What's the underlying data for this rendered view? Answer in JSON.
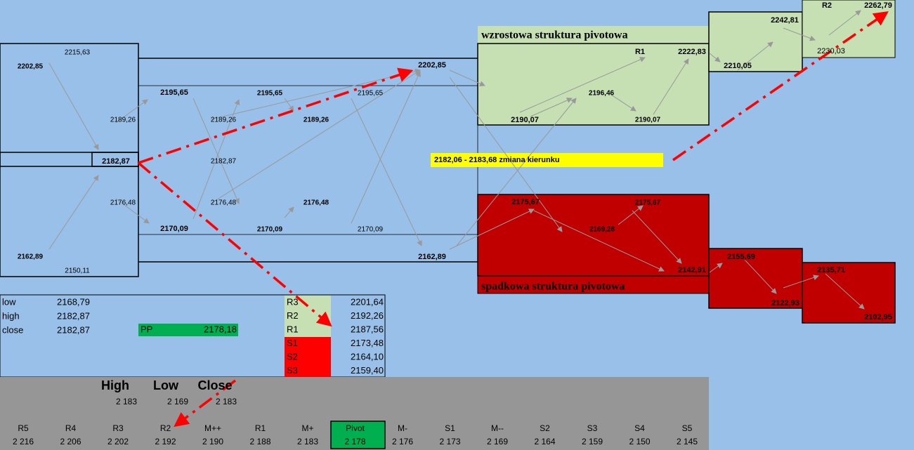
{
  "labels": [
    "2215,63",
    "2202,85",
    "2189,26",
    "2182,87",
    "2176,48",
    "2162,89",
    "2150,11",
    "2195,65",
    "2195,65",
    "2195,65",
    "2189,26",
    "2189,26",
    "2182,87",
    "2176,48",
    "2176,48",
    "2170,09",
    "2170,09",
    "2170,09",
    "2202,85",
    "2162,89",
    "wzrostowa struktura pivotowa",
    "R1",
    "2222,83",
    "2196,46",
    "2190,07",
    "2190,07",
    "2210,05",
    "2242,81",
    "2230,03",
    "R2",
    "2262,79",
    "2182,06 - 2183,68 zmiana kierunku",
    "2175,67",
    "2175,67",
    "2169,28",
    "2142,91",
    "spadkowa struktura pivotowa",
    "2155,69",
    "2122,93",
    "2135,71",
    "2102,95"
  ],
  "ohlc": [
    [
      "low",
      "2168,79"
    ],
    [
      "high",
      "2182,87"
    ],
    [
      "close",
      "2182,87"
    ]
  ],
  "pp": [
    "PP",
    "2178,18"
  ],
  "pivots": [
    [
      "R3",
      "2201,64"
    ],
    [
      "R2",
      "2192,26"
    ],
    [
      "R1",
      "2187,56"
    ],
    [
      "S1",
      "2173,48"
    ],
    [
      "S2",
      "2164,10"
    ],
    [
      "S3",
      "2159,40"
    ]
  ],
  "hlc_headers": [
    "High",
    "Low",
    "Close"
  ],
  "hlc_values": [
    "2 183",
    "2 169",
    "2 183"
  ],
  "levels": [
    {
      "name": "R5",
      "value": "2 216"
    },
    {
      "name": "R4",
      "value": "2 206"
    },
    {
      "name": "R3",
      "value": "2 202"
    },
    {
      "name": "R2",
      "value": "2 192"
    },
    {
      "name": "M++",
      "value": "2 190"
    },
    {
      "name": "R1",
      "value": "2 188"
    },
    {
      "name": "M+",
      "value": "2 183"
    },
    {
      "name": "Pivot",
      "value": "2 178"
    },
    {
      "name": "M-",
      "value": "2 176"
    },
    {
      "name": "S1",
      "value": "2 173"
    },
    {
      "name": "M--",
      "value": "2 169"
    },
    {
      "name": "S2",
      "value": "2 164"
    },
    {
      "name": "S3",
      "value": "2 159"
    },
    {
      "name": "S4",
      "value": "2 150"
    },
    {
      "name": "S5",
      "value": "2 145"
    }
  ]
}
